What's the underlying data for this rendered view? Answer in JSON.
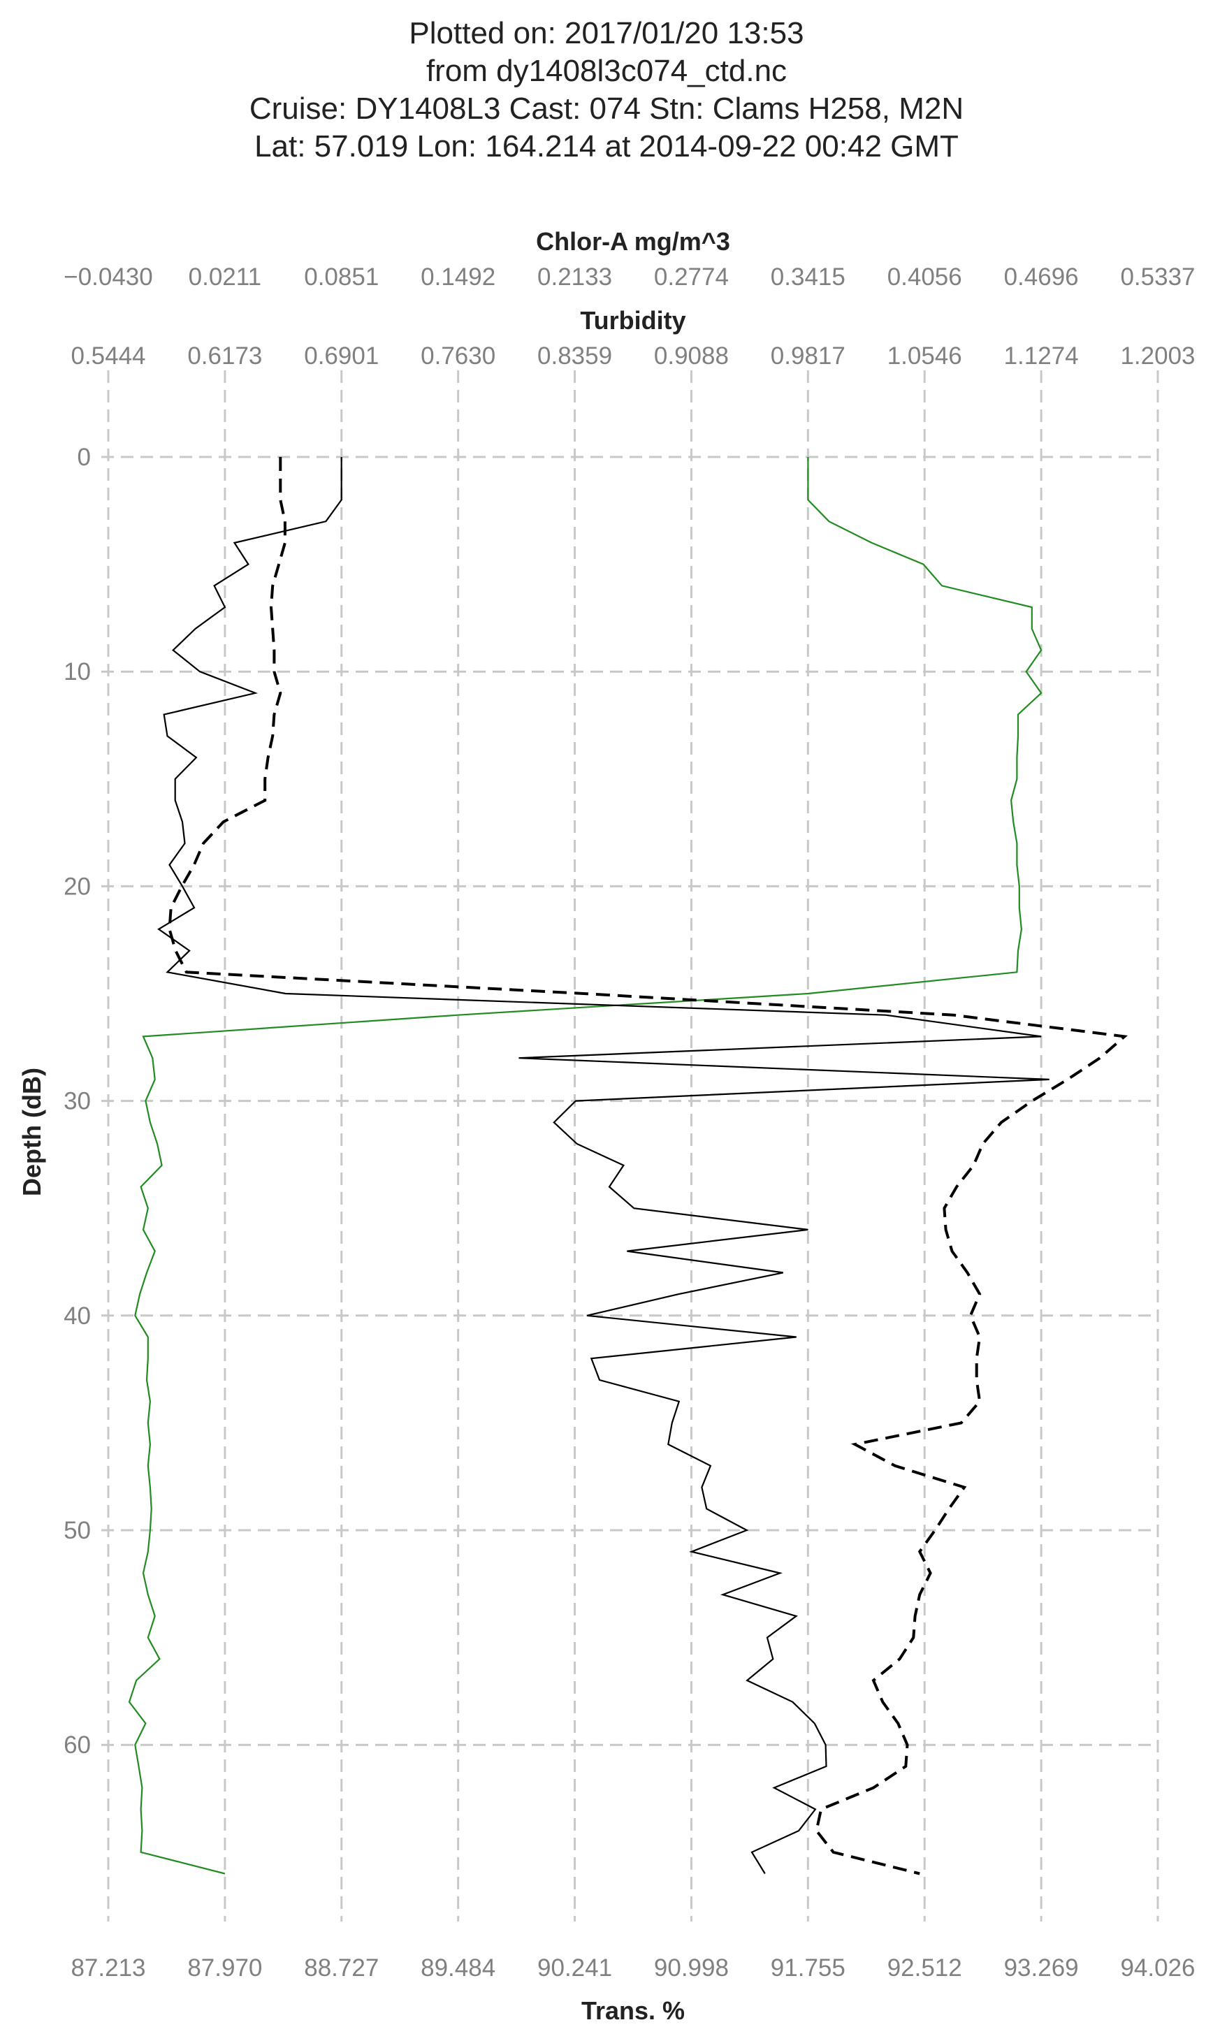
{
  "title_lines": [
    "Plotted on: 2017/01/20 13:53",
    "from dy1408l3c074_ctd.nc",
    "Cruise: DY1408L3  Cast: 074  Stn: Clams H258, M2N",
    "Lat: 57.019  Lon: 164.214 at 2014-09-22 00:42 GMT"
  ],
  "chart_data": {
    "type": "line",
    "title": "Plotted on: 2017/01/20 13:53 from dy1408l3c074_ctd.nc Cruise: DY1408L3  Cast: 074  Stn: Clams H258, M2N Lat: 57.019  Lon: 164.214 at 2014-09-22 00:42 GMT",
    "y_axis": {
      "label": "Depth (dB)",
      "range": [
        0,
        69.0
      ],
      "inverted": true,
      "ticks": [
        "0",
        "10",
        "20",
        "30",
        "40",
        "50",
        "60"
      ],
      "tick_values": [
        0,
        10,
        20,
        30,
        40,
        50,
        60
      ]
    },
    "x_axes": [
      {
        "key": "chlor",
        "label": "Chlor-A mg/m^3",
        "position": "top",
        "range": [
          -0.043,
          0.5337
        ],
        "ticks": [
          "−0.0430",
          "0.0211",
          "0.0851",
          "0.1492",
          "0.2133",
          "0.2774",
          "0.3415",
          "0.4056",
          "0.4696",
          "0.5337"
        ]
      },
      {
        "key": "turb",
        "label": "Turbidity",
        "position": "top",
        "range": [
          0.5444,
          1.2003
        ],
        "ticks": [
          "0.5444",
          "0.6173",
          "0.6901",
          "0.7630",
          "0.8359",
          "0.9088",
          "0.9817",
          "1.0546",
          "1.1274",
          "1.2003"
        ]
      },
      {
        "key": "trans",
        "label": "Trans. %",
        "position": "bottom",
        "range": [
          87.213,
          94.026
        ],
        "ticks": [
          "87.213",
          "87.970",
          "88.727",
          "89.484",
          "90.241",
          "90.998",
          "91.755",
          "92.512",
          "93.269",
          "94.026"
        ]
      }
    ],
    "grid": true,
    "series": [
      {
        "axis": "chlor",
        "color": "#228b22",
        "style": "solid",
        "depth": [
          0,
          2,
          3,
          4,
          5,
          6,
          7,
          8,
          9,
          10,
          11,
          12,
          13,
          14,
          15,
          16,
          17,
          18,
          19,
          20,
          21,
          22,
          23,
          24,
          25,
          26,
          27,
          28,
          29,
          30,
          31,
          32,
          33,
          34,
          35,
          36,
          37,
          38,
          39,
          40,
          41,
          42,
          43,
          44,
          45,
          46,
          47,
          48,
          49,
          50,
          51,
          52,
          53,
          54,
          55,
          56,
          57,
          58,
          59,
          60,
          61,
          62,
          63,
          64,
          65,
          66
        ],
        "values": [
          0.3415,
          0.3415,
          0.353,
          0.3765,
          0.4049,
          0.4151,
          0.4645,
          0.4645,
          0.4696,
          0.4614,
          0.4696,
          0.4569,
          0.4569,
          0.4563,
          0.4563,
          0.4531,
          0.4543,
          0.4563,
          0.4563,
          0.4576,
          0.4576,
          0.4588,
          0.4569,
          0.4563,
          0.3415,
          0.1492,
          -0.0238,
          -0.0187,
          -0.0174,
          -0.0225,
          -0.02,
          -0.0161,
          -0.0136,
          -0.0251,
          -0.0212,
          -0.0238,
          -0.0174,
          -0.0219,
          -0.0257,
          -0.0283,
          -0.0212,
          -0.0212,
          -0.0219,
          -0.02,
          -0.0212,
          -0.02,
          -0.0212,
          -0.02,
          -0.0193,
          -0.02,
          -0.0212,
          -0.0238,
          -0.0212,
          -0.0174,
          -0.0212,
          -0.0148,
          -0.0276,
          -0.0315,
          -0.0225,
          -0.0283,
          -0.0263,
          -0.0244,
          -0.0251,
          -0.0244,
          -0.0251,
          0.0211
        ]
      },
      {
        "axis": "turb",
        "color": "#000000",
        "style": "solid",
        "depth": [
          0,
          2,
          3,
          4,
          5,
          6,
          7,
          8,
          9,
          10,
          11,
          12,
          13,
          14,
          15,
          16,
          17,
          18,
          19,
          20,
          21,
          22,
          23,
          24,
          25,
          26,
          27,
          28,
          29,
          30,
          31,
          32,
          33,
          34,
          35,
          36,
          37,
          38,
          39,
          40,
          41,
          42,
          43,
          44,
          45,
          46,
          47,
          48,
          49,
          50,
          51,
          52,
          53,
          54,
          55,
          56,
          57,
          58,
          59,
          60,
          61,
          62,
          63,
          64,
          65,
          66
        ],
        "values": [
          0.6901,
          0.6901,
          0.6804,
          0.6232,
          0.6319,
          0.6106,
          0.6173,
          0.5988,
          0.5849,
          0.6016,
          0.6363,
          0.5792,
          0.5813,
          0.5994,
          0.5862,
          0.5862,
          0.5907,
          0.5922,
          0.5826,
          0.5907,
          0.5981,
          0.5759,
          0.5951,
          0.5813,
          0.6552,
          1.0302,
          1.1274,
          0.8009,
          1.1325,
          0.8365,
          0.8229,
          0.8373,
          0.8664,
          0.8575,
          0.8729,
          0.9817,
          0.8686,
          0.9661,
          0.9009,
          0.8435,
          0.9744,
          0.8463,
          0.8514,
          0.9011,
          0.8967,
          0.8943,
          0.9208,
          0.9153,
          0.9183,
          0.9434,
          0.9089,
          0.9642,
          0.9284,
          0.9743,
          0.9562,
          0.9598,
          0.9436,
          0.9721,
          0.9858,
          0.9927,
          0.9931,
          0.9605,
          0.9863,
          0.9759,
          0.9466,
          0.9548
        ]
      },
      {
        "axis": "trans",
        "color": "#000000",
        "style": "dashed",
        "depth": [
          0,
          2,
          3,
          4,
          5,
          6,
          7,
          8,
          9,
          10,
          11,
          12,
          13,
          14,
          15,
          16,
          17,
          18,
          19,
          20,
          21,
          22,
          23,
          24,
          25,
          26,
          27,
          28,
          29,
          30,
          31,
          32,
          33,
          34,
          35,
          36,
          37,
          38,
          39,
          40,
          41,
          42,
          43,
          44,
          45,
          46,
          47,
          48,
          49,
          50,
          51,
          52,
          53,
          54,
          55,
          56,
          57,
          58,
          59,
          60,
          61,
          62,
          63,
          64,
          65,
          66
        ],
        "values": [
          88.33,
          88.33,
          88.36,
          88.36,
          88.32,
          88.28,
          88.27,
          88.28,
          88.29,
          88.29,
          88.33,
          88.29,
          88.28,
          88.25,
          88.23,
          88.23,
          87.96,
          87.83,
          87.77,
          87.69,
          87.62,
          87.61,
          87.65,
          87.72,
          90.3,
          92.7,
          93.81,
          93.65,
          93.44,
          93.21,
          93.01,
          92.89,
          92.83,
          92.72,
          92.64,
          92.65,
          92.69,
          92.79,
          92.87,
          92.81,
          92.87,
          92.85,
          92.85,
          92.87,
          92.75,
          92.06,
          92.32,
          92.77,
          92.67,
          92.58,
          92.48,
          92.55,
          92.48,
          92.45,
          92.44,
          92.35,
          92.18,
          92.24,
          92.34,
          92.4,
          92.39,
          92.18,
          91.84,
          91.81,
          91.92,
          92.48
        ]
      }
    ]
  }
}
